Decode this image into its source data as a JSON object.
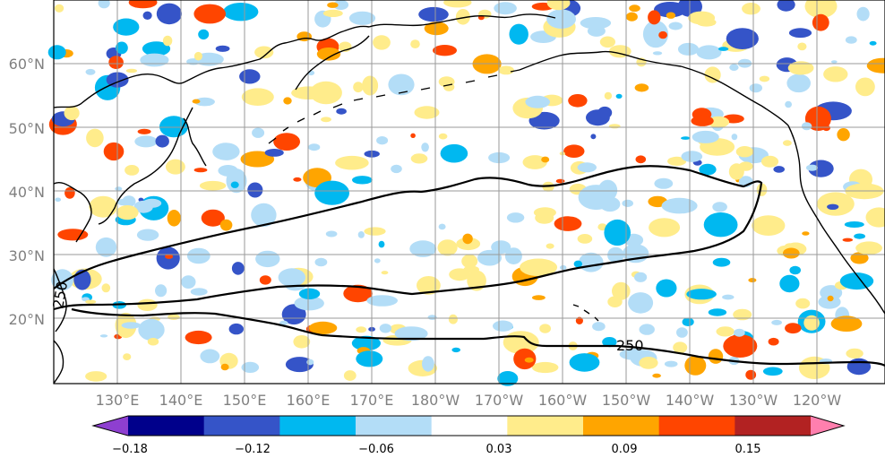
{
  "map": {
    "lat_labels": [
      "60°N",
      "50°N",
      "40°N",
      "30°N",
      "20°N"
    ],
    "lon_labels": [
      "130°E",
      "140°E",
      "150°E",
      "160°E",
      "170°E",
      "180°W",
      "170°W",
      "160°W",
      "150°W",
      "140°W",
      "130°W",
      "120°W"
    ],
    "contour_labels": [
      "250",
      "250"
    ],
    "gridlines": true
  },
  "colorbar": {
    "tick_labels": [
      "−0.18",
      "−0.12",
      "−0.06",
      "0.03",
      "0.09",
      "0.15"
    ],
    "colors": [
      "#8e3fd0",
      "#00008b",
      "#3554c8",
      "#00b8f0",
      "#b3ddf7",
      "#ffffff",
      "#ffec8b",
      "#ffa500",
      "#ff4500",
      "#b22222",
      "#ff7fae"
    ]
  },
  "colors": {
    "land_outline": "#000000",
    "gridline": "#9a9a9a",
    "contour": "#000000"
  }
}
